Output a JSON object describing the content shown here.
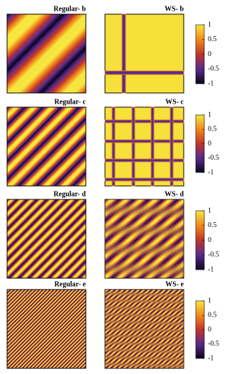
{
  "rows": [
    {
      "left_title": "Regular- b",
      "right_title": "WS- b",
      "colorbar_ticks": [
        1,
        0.5,
        0,
        -0.5,
        -1
      ]
    },
    {
      "left_title": "Regular- c",
      "right_title": "WS- c",
      "colorbar_ticks": [
        1,
        0.5,
        0,
        -0.5,
        -1
      ]
    },
    {
      "left_title": "Regular- d",
      "right_title": "WS- d",
      "colorbar_ticks": [
        1,
        0.5,
        0,
        -0.5,
        -1
      ]
    },
    {
      "left_title": "Regular- e",
      "right_title": "WS- e",
      "colorbar_ticks": [
        1,
        0.5,
        0,
        -0.5,
        -1
      ]
    }
  ]
}
